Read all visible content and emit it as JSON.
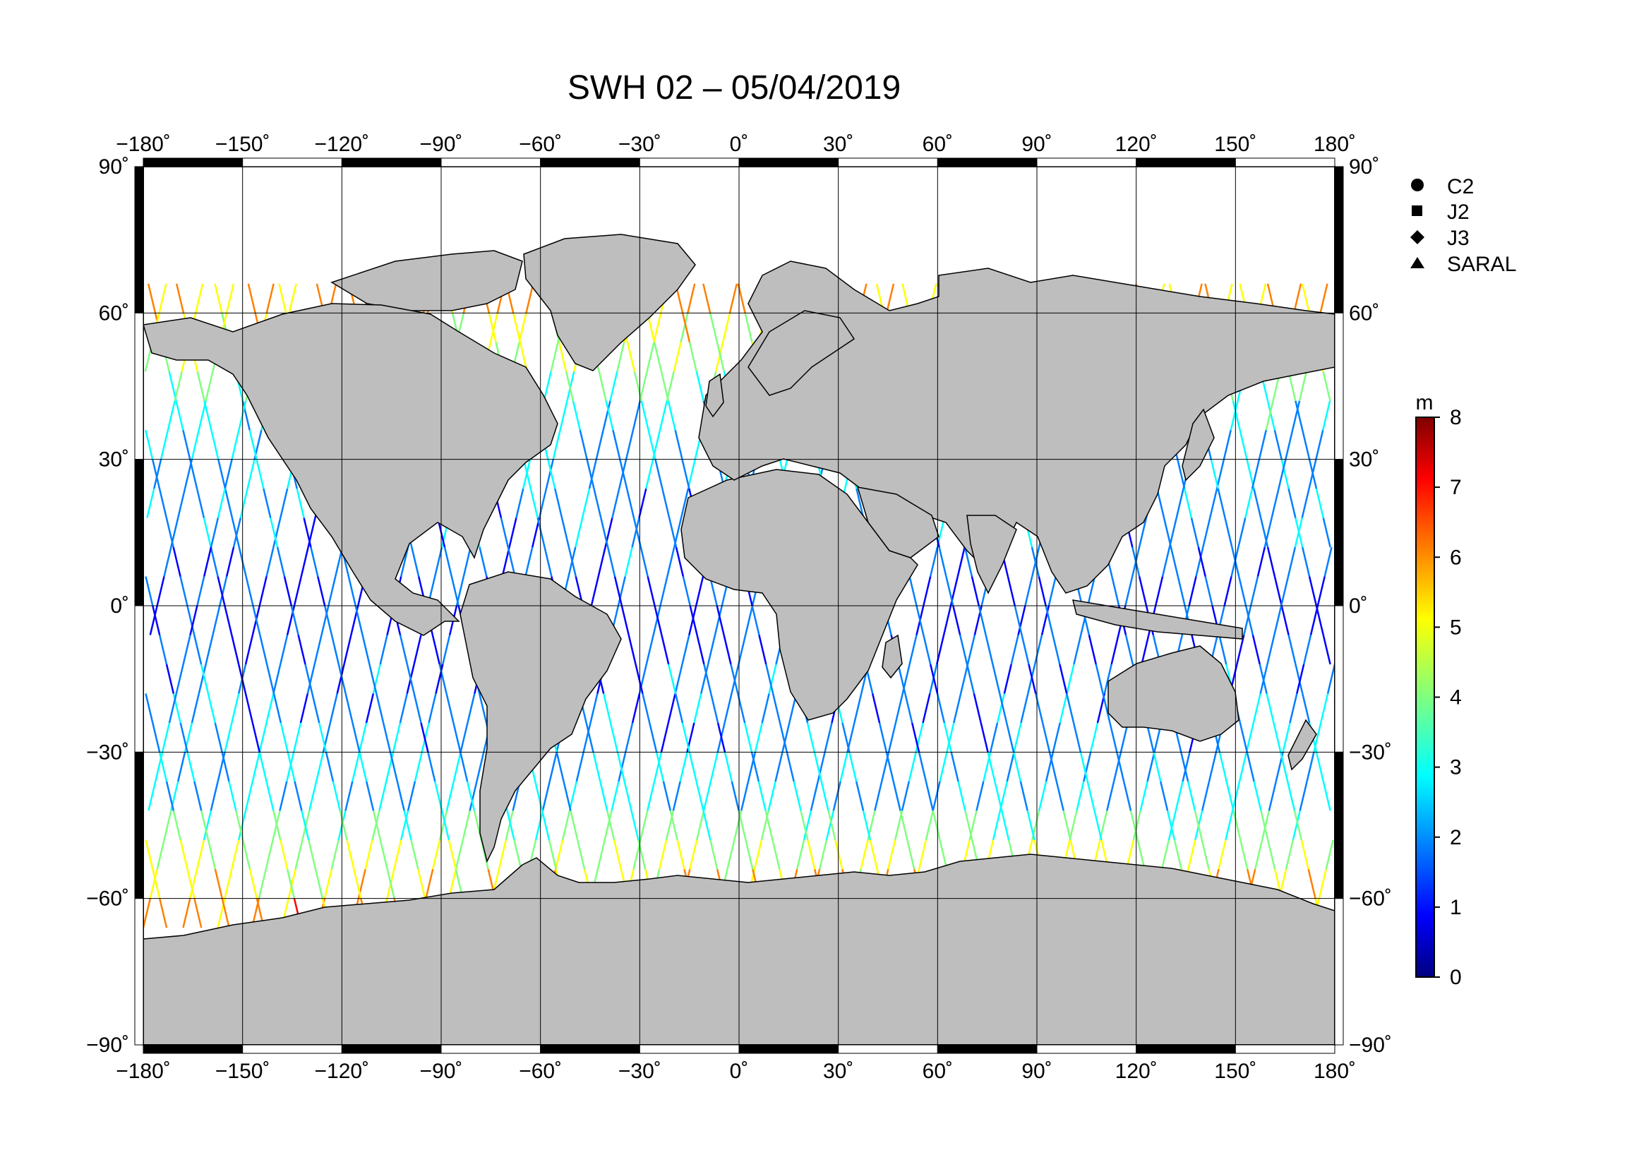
{
  "title": "SWH 02 – 05/04/2019",
  "map": {
    "projection": "equirectangular",
    "lon_range": [
      -180,
      180
    ],
    "lat_range": [
      -90,
      90
    ],
    "lon_ticks": [
      -180,
      -150,
      -120,
      -90,
      -60,
      -30,
      0,
      30,
      60,
      90,
      120,
      150,
      180
    ],
    "lat_ticks": [
      90,
      60,
      30,
      0,
      -30,
      -60,
      -90
    ],
    "lon_tick_labels": [
      "−180˚",
      "−150˚",
      "−120˚",
      "−90˚",
      "−60˚",
      "−30˚",
      "0˚",
      "30˚",
      "60˚",
      "90˚",
      "120˚",
      "150˚",
      "180˚"
    ],
    "lat_tick_labels": [
      "90˚",
      "60˚",
      "30˚",
      "0˚",
      "−30˚",
      "−60˚",
      "−90˚"
    ],
    "grid": true,
    "land_color": "#bebebe",
    "ocean_color": "#ffffff"
  },
  "legend": {
    "placement": "right",
    "items": [
      {
        "label": "C2",
        "marker": "circle"
      },
      {
        "label": "J2",
        "marker": "square"
      },
      {
        "label": "J3",
        "marker": "diamond"
      },
      {
        "label": "SARAL",
        "marker": "triangle"
      }
    ]
  },
  "colorbar": {
    "unit": "m",
    "min": 0,
    "max": 8,
    "tick_labels": [
      "0",
      "1",
      "2",
      "3",
      "4",
      "5",
      "6",
      "7",
      "8"
    ],
    "colormap": "jet",
    "colormap_stops": [
      "#00007f",
      "#0000ff",
      "#007fff",
      "#00ffff",
      "#7fff7f",
      "#ffff00",
      "#ff7f00",
      "#ff0000",
      "#7f0000"
    ]
  }
}
